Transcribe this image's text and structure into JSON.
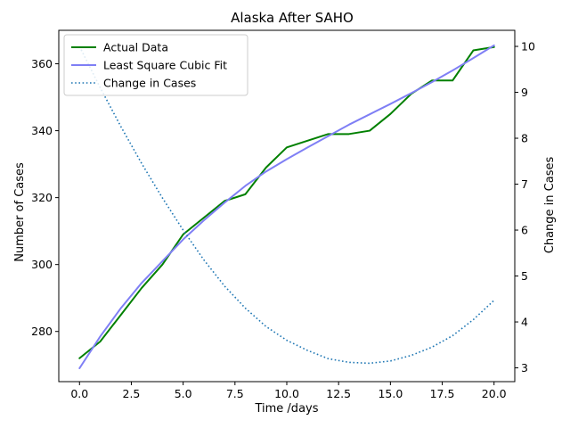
{
  "chart_data": {
    "type": "line",
    "title": "Alaska After SAHO",
    "xlabel": "Time /days",
    "ylabel": "Number of Cases",
    "y2label": "Change in Cases",
    "xlim": [
      -1,
      21
    ],
    "ylim": [
      265,
      370
    ],
    "y2lim": [
      2.7,
      10.35
    ],
    "grid": false,
    "legend_position": "top-left",
    "x_ticks": [
      0,
      2.5,
      5,
      7.5,
      10,
      12.5,
      15,
      17.5,
      20
    ],
    "x_tick_labels": [
      "0.0",
      "2.5",
      "5.0",
      "7.5",
      "10.0",
      "12.5",
      "15.0",
      "17.5",
      "20.0"
    ],
    "y_ticks": [
      280,
      300,
      320,
      340,
      360
    ],
    "y_tick_labels": [
      "280",
      "300",
      "320",
      "340",
      "360"
    ],
    "y2_ticks": [
      3,
      4,
      5,
      6,
      7,
      8,
      9,
      10
    ],
    "y2_tick_labels": [
      "3",
      "4",
      "5",
      "6",
      "7",
      "8",
      "9",
      "10"
    ],
    "x": [
      0,
      1,
      2,
      3,
      4,
      5,
      6,
      7,
      8,
      9,
      10,
      11,
      12,
      13,
      14,
      15,
      16,
      17,
      18,
      19,
      20
    ],
    "series": [
      {
        "name": "Actual Data",
        "axis": "left",
        "color": "#008000",
        "style": "solid",
        "values": [
          272,
          277,
          285,
          293,
          300,
          309,
          314,
          319,
          321,
          329,
          335,
          337,
          339,
          339,
          340,
          345,
          351,
          355,
          355,
          364,
          365
        ]
      },
      {
        "name": "Least Square Cubic Fit",
        "axis": "left",
        "color": "#7f7ff5",
        "style": "solid",
        "values": [
          269,
          278.5,
          287,
          294.5,
          301,
          307.5,
          313.2,
          318.5,
          323.5,
          327.8,
          331.5,
          335,
          338.4,
          341.8,
          344.9,
          348,
          351.2,
          354.5,
          358,
          361.7,
          365.5
        ]
      },
      {
        "name": "Change in Cases",
        "axis": "right",
        "color": "#1f77b4",
        "style": "dotted",
        "values": [
          10.0,
          9.1,
          8.25,
          7.45,
          6.7,
          6.0,
          5.35,
          4.78,
          4.3,
          3.9,
          3.6,
          3.38,
          3.2,
          3.12,
          3.1,
          3.15,
          3.27,
          3.45,
          3.7,
          4.05,
          4.47
        ]
      }
    ]
  }
}
